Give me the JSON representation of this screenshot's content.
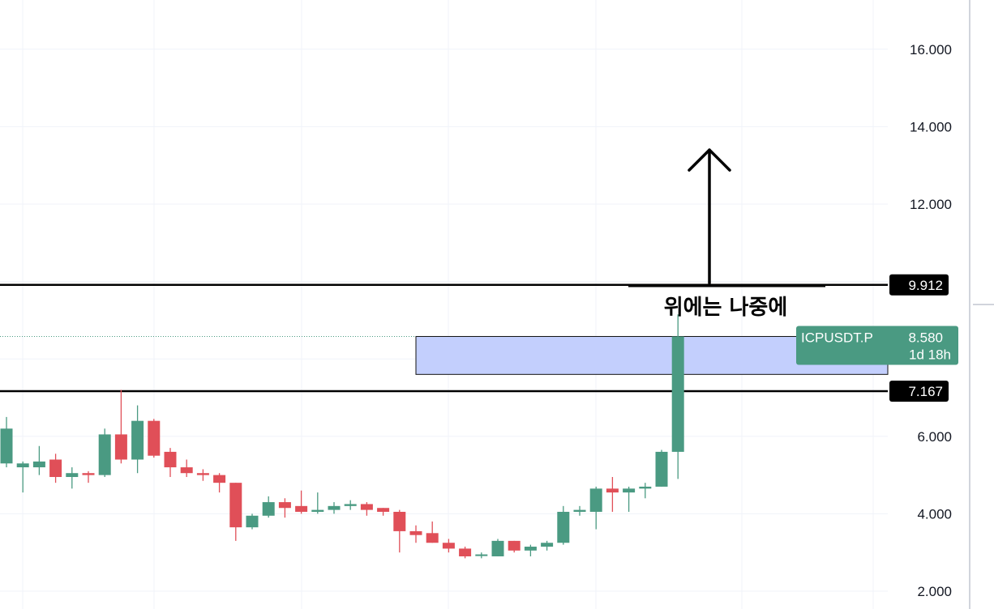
{
  "chart_data": {
    "type": "candlestick",
    "symbol": "ICPUSDT.P",
    "last_price": "8.580",
    "countdown": "1d 18h",
    "ylim": [
      1.6,
      17.1
    ],
    "y_ticks": [
      2.0,
      4.0,
      6.0,
      12.0,
      14.0,
      16.0
    ],
    "y_tick_labels": [
      "2.000",
      "4.000",
      "6.000",
      "12.000",
      "14.000",
      "16.000"
    ],
    "horizontal_lines": [
      {
        "price": 9.912,
        "label": "9.912"
      },
      {
        "price": 7.167,
        "label": "7.167"
      }
    ],
    "zone": {
      "top": 8.58,
      "bottom": 7.6
    },
    "annotation": {
      "text": "위에는 나중에",
      "price": 8.2
    },
    "arrow": {
      "from_price": 9.96,
      "to_price": 13.4
    },
    "candles": [
      {
        "o": 5.3,
        "h": 6.5,
        "l": 5.2,
        "c": 6.2
      },
      {
        "o": 5.2,
        "h": 5.35,
        "l": 4.55,
        "c": 5.3
      },
      {
        "o": 5.2,
        "h": 5.75,
        "l": 5.0,
        "c": 5.35
      },
      {
        "o": 5.4,
        "h": 5.55,
        "l": 4.8,
        "c": 4.95
      },
      {
        "o": 4.95,
        "h": 5.2,
        "l": 4.65,
        "c": 5.05
      },
      {
        "o": 5.05,
        "h": 5.1,
        "l": 4.8,
        "c": 5.0
      },
      {
        "o": 5.0,
        "h": 6.2,
        "l": 4.95,
        "c": 6.05
      },
      {
        "o": 6.05,
        "h": 7.2,
        "l": 5.3,
        "c": 5.4
      },
      {
        "o": 5.4,
        "h": 6.8,
        "l": 5.05,
        "c": 6.4
      },
      {
        "o": 6.4,
        "h": 6.45,
        "l": 5.45,
        "c": 5.5
      },
      {
        "o": 5.6,
        "h": 5.7,
        "l": 4.95,
        "c": 5.2
      },
      {
        "o": 5.2,
        "h": 5.4,
        "l": 4.95,
        "c": 5.05
      },
      {
        "o": 5.05,
        "h": 5.15,
        "l": 4.85,
        "c": 5.0
      },
      {
        "o": 5.0,
        "h": 5.05,
        "l": 4.55,
        "c": 4.8
      },
      {
        "o": 4.8,
        "h": 4.8,
        "l": 3.3,
        "c": 3.65
      },
      {
        "o": 3.65,
        "h": 4.0,
        "l": 3.6,
        "c": 3.95
      },
      {
        "o": 3.95,
        "h": 4.45,
        "l": 3.9,
        "c": 4.3
      },
      {
        "o": 4.3,
        "h": 4.4,
        "l": 3.9,
        "c": 4.15
      },
      {
        "o": 4.2,
        "h": 4.6,
        "l": 4.0,
        "c": 4.05
      },
      {
        "o": 4.05,
        "h": 4.55,
        "l": 4.0,
        "c": 4.1
      },
      {
        "o": 4.1,
        "h": 4.3,
        "l": 4.0,
        "c": 4.2
      },
      {
        "o": 4.2,
        "h": 4.35,
        "l": 4.1,
        "c": 4.25
      },
      {
        "o": 4.25,
        "h": 4.3,
        "l": 3.95,
        "c": 4.1
      },
      {
        "o": 4.15,
        "h": 4.15,
        "l": 3.95,
        "c": 4.05
      },
      {
        "o": 4.05,
        "h": 4.1,
        "l": 3.0,
        "c": 3.55
      },
      {
        "o": 3.55,
        "h": 3.7,
        "l": 3.25,
        "c": 3.45
      },
      {
        "o": 3.5,
        "h": 3.8,
        "l": 3.25,
        "c": 3.25
      },
      {
        "o": 3.25,
        "h": 3.35,
        "l": 3.0,
        "c": 3.1
      },
      {
        "o": 3.1,
        "h": 3.15,
        "l": 2.85,
        "c": 2.9
      },
      {
        "o": 2.92,
        "h": 3.0,
        "l": 2.85,
        "c": 2.95
      },
      {
        "o": 2.9,
        "h": 3.35,
        "l": 2.9,
        "c": 3.3
      },
      {
        "o": 3.3,
        "h": 3.3,
        "l": 3.0,
        "c": 3.05
      },
      {
        "o": 3.05,
        "h": 3.2,
        "l": 2.9,
        "c": 3.15
      },
      {
        "o": 3.15,
        "h": 3.3,
        "l": 3.05,
        "c": 3.25
      },
      {
        "o": 3.25,
        "h": 4.2,
        "l": 3.2,
        "c": 4.05
      },
      {
        "o": 4.05,
        "h": 4.2,
        "l": 3.95,
        "c": 4.1
      },
      {
        "o": 4.05,
        "h": 4.7,
        "l": 3.6,
        "c": 4.65
      },
      {
        "o": 4.65,
        "h": 4.95,
        "l": 4.05,
        "c": 4.55
      },
      {
        "o": 4.55,
        "h": 4.7,
        "l": 4.05,
        "c": 4.65
      },
      {
        "o": 4.65,
        "h": 4.8,
        "l": 4.4,
        "c": 4.7
      },
      {
        "o": 4.7,
        "h": 5.65,
        "l": 4.7,
        "c": 5.6
      },
      {
        "o": 5.6,
        "h": 9.15,
        "l": 4.9,
        "c": 8.58
      }
    ],
    "colors": {
      "up": "#4a9a82",
      "down": "#e04f58",
      "hline": "#000000",
      "zone_fill": "#c3cffd",
      "zone_border": "#111111",
      "tag_bg": "#000000",
      "symbol_tag_bg": "#4a9a82",
      "grid": "#f0f3fa",
      "axis_text": "#131722"
    }
  }
}
